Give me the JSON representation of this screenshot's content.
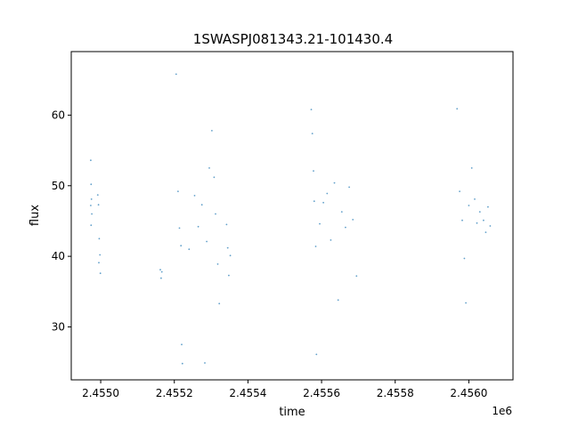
{
  "chart_data": {
    "type": "scatter",
    "title": "1SWASPJ081343.21-101430.4",
    "xlabel": "time",
    "ylabel": "flux",
    "x_offset_label": "1e6",
    "xlim": [
      2454870,
      2456070
    ],
    "ylim": [
      22.5,
      69
    ],
    "xticks": [
      2454950,
      2455150,
      2455350,
      2455550,
      2455750,
      2455950
    ],
    "xtick_labels": [
      "2.4550",
      "2.4552",
      "2.4554",
      "2.4556",
      "2.4558",
      "2.4560"
    ],
    "yticks": [
      30,
      40,
      50,
      60
    ],
    "ytick_labels": [
      "30",
      "40",
      "50",
      "60"
    ],
    "grid": false,
    "marker_color": "#1f77b4",
    "series": [
      {
        "clusters": [
          {
            "x_range": [
              2454922,
              2454927
            ],
            "points": [
              [
                2454923,
                53.6
              ],
              [
                2454924,
                50.2
              ],
              [
                2454925,
                48.1
              ],
              [
                2454926,
                46.0
              ],
              [
                2454924,
                44.4
              ],
              [
                2454923,
                47.2
              ]
            ]
          },
          {
            "x_range": [
              2454940,
              2454950
            ],
            "points": [
              [
                2454942,
                48.7
              ],
              [
                2454944,
                47.3
              ],
              [
                2454946,
                42.5
              ],
              [
                2454948,
                40.2
              ],
              [
                2454949,
                37.6
              ],
              [
                2454945,
                39.1
              ]
            ]
          },
          {
            "x_range": [
              2455110,
              2455118
            ],
            "points": [
              [
                2455112,
                38.1
              ],
              [
                2455114,
                36.9
              ],
              [
                2455116,
                37.8
              ]
            ]
          },
          {
            "x_range": [
              2455152,
              2455175
            ],
            "points": [
              [
                2455155,
                65.8
              ],
              [
                2455160,
                49.2
              ],
              [
                2455164,
                44.0
              ],
              [
                2455168,
                41.5
              ],
              [
                2455170,
                27.5
              ],
              [
                2455172,
                24.8
              ]
            ]
          },
          {
            "x_range": [
              2455180,
              2455240
            ],
            "points": [
              [
                2455190,
                41.0
              ],
              [
                2455205,
                48.6
              ],
              [
                2455215,
                44.2
              ],
              [
                2455225,
                47.3
              ],
              [
                2455233,
                24.9
              ],
              [
                2455238,
                42.1
              ]
            ]
          },
          {
            "x_range": [
              2455240,
              2455275
            ],
            "points": [
              [
                2455245,
                52.5
              ],
              [
                2455252,
                57.8
              ],
              [
                2455258,
                51.2
              ],
              [
                2455262,
                46.0
              ],
              [
                2455268,
                38.9
              ],
              [
                2455272,
                33.3
              ]
            ]
          },
          {
            "x_range": [
              2455290,
              2455305
            ],
            "points": [
              [
                2455292,
                44.5
              ],
              [
                2455295,
                41.2
              ],
              [
                2455298,
                37.3
              ],
              [
                2455302,
                40.1
              ]
            ]
          },
          {
            "x_range": [
              2455518,
              2455540
            ],
            "points": [
              [
                2455522,
                60.8
              ],
              [
                2455525,
                57.4
              ],
              [
                2455528,
                52.1
              ],
              [
                2455530,
                47.8
              ],
              [
                2455534,
                41.4
              ],
              [
                2455536,
                26.1
              ]
            ]
          },
          {
            "x_range": [
              2455540,
              2455600
            ],
            "points": [
              [
                2455545,
                44.6
              ],
              [
                2455555,
                47.6
              ],
              [
                2455565,
                48.9
              ],
              [
                2455575,
                42.3
              ],
              [
                2455585,
                50.4
              ],
              [
                2455595,
                33.8
              ]
            ]
          },
          {
            "x_range": [
              2455600,
              2455650
            ],
            "points": [
              [
                2455605,
                46.3
              ],
              [
                2455615,
                44.1
              ],
              [
                2455625,
                49.8
              ],
              [
                2455635,
                45.2
              ],
              [
                2455645,
                37.2
              ]
            ]
          },
          {
            "x_range": [
              2455915,
              2455945
            ],
            "points": [
              [
                2455918,
                60.9
              ],
              [
                2455925,
                49.2
              ],
              [
                2455932,
                45.1
              ],
              [
                2455938,
                39.7
              ],
              [
                2455942,
                33.4
              ]
            ]
          },
          {
            "x_range": [
              2455945,
              2455985
            ],
            "points": [
              [
                2455950,
                47.2
              ],
              [
                2455958,
                52.5
              ],
              [
                2455966,
                48.1
              ],
              [
                2455972,
                44.7
              ],
              [
                2455980,
                46.3
              ]
            ]
          },
          {
            "x_range": [
              2455985,
              2456012
            ],
            "points": [
              [
                2455990,
                45.1
              ],
              [
                2455996,
                43.4
              ],
              [
                2456002,
                47.0
              ],
              [
                2456008,
                44.3
              ]
            ]
          }
        ]
      }
    ]
  }
}
